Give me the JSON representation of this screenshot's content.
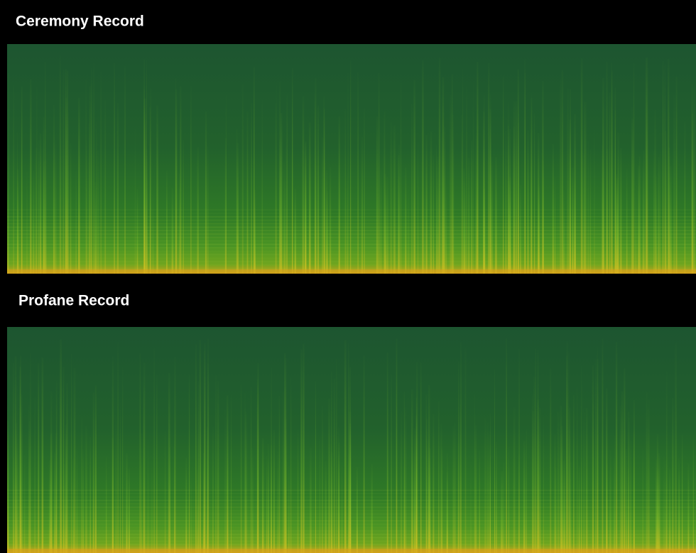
{
  "panels": [
    {
      "title": "Ceremony Record"
    },
    {
      "title": "Profane Record"
    }
  ]
}
